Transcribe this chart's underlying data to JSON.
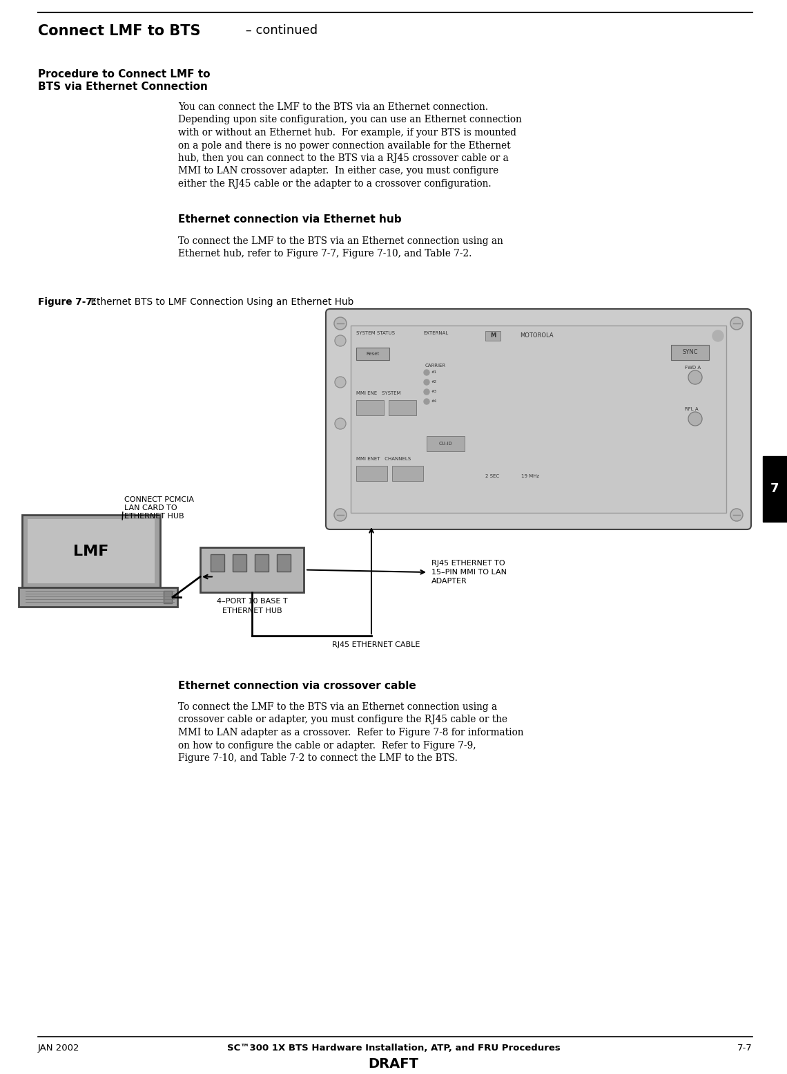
{
  "title_bold": "Connect LMF to BTS",
  "title_normal": " – continued",
  "section_heading_line1": "Procedure to Connect LMF to",
  "section_heading_line2": "BTS via Ethernet Connection",
  "body_text_1_lines": [
    "You can connect the LMF to the BTS via an Ethernet connection.",
    "Depending upon site configuration, you can use an Ethernet connection",
    "with or without an Ethernet hub.  For example, if your BTS is mounted",
    "on a pole and there is no power connection available for the Ethernet",
    "hub, then you can connect to the BTS via a RJ45 crossover cable or a",
    "MMI to LAN crossover adapter.  In either case, you must configure",
    "either the RJ45 cable or the adapter to a crossover configuration."
  ],
  "subhead_1": "Ethernet connection via Ethernet hub",
  "body_text_2_lines": [
    "To connect the LMF to the BTS via an Ethernet connection using an",
    "Ethernet hub, refer to Figure 7-7, Figure 7-10, and Table 7-2."
  ],
  "figure_caption_bold": "Figure 7-7:",
  "figure_caption_normal": " Ethernet BTS to LMF Connection Using an Ethernet Hub",
  "label_lmf": "LMF",
  "label_hub_line1": "4–PORT 10 BASE T",
  "label_hub_line2": "ETHERNET HUB",
  "label_pcmcia_line1": "CONNECT PCMCIA",
  "label_pcmcia_line2": "LAN CARD TO",
  "label_pcmcia_line3": "ETHERNET HUB",
  "label_rj45_adapter_line1": "RJ45 ETHERNET TO",
  "label_rj45_adapter_line2": "15–PIN MMI TO LAN",
  "label_rj45_adapter_line3": "ADAPTER",
  "label_rj45_cable": "RJ45 ETHERNET CABLE",
  "subhead_2": "Ethernet connection via crossover cable",
  "body_text_3_lines": [
    "To connect the LMF to the BTS via an Ethernet connection using a",
    "crossover cable or adapter, you must configure the RJ45 cable or the",
    "MMI to LAN adapter as a crossover.  Refer to Figure 7-8 for information",
    "on how to configure the cable or adapter.  Refer to Figure 7-9,",
    "Figure 7-10, and Table 7-2 to connect the LMF to the BTS."
  ],
  "footer_left": "JAN 2002",
  "footer_center": "SC™300 1X BTS Hardware Installation, ATP, and FRU Procedures",
  "footer_right": "7-7",
  "footer_draft": "DRAFT",
  "bg_color": "#ffffff",
  "text_color": "#000000",
  "gray_dark": "#444444",
  "gray_mid": "#888888",
  "gray_light": "#cccccc",
  "gray_panel": "#d0d0d0",
  "tab_color": "#000000"
}
